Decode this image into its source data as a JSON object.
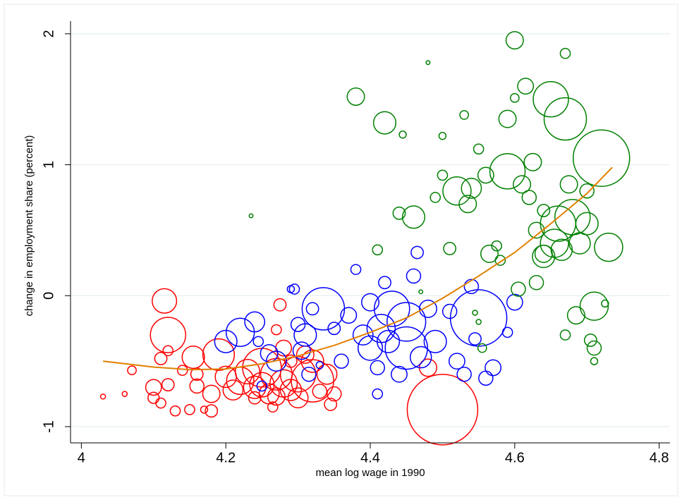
{
  "chart_data": {
    "type": "scatter",
    "x_label": "mean log wage in 1990",
    "y_label": "change in employment share (percent)",
    "xlim": [
      3.985,
      4.815
    ],
    "ylim": [
      -1.124,
      2.204
    ],
    "xticks": [
      4,
      4.2,
      4.4,
      4.6,
      4.8
    ],
    "yticks": [
      -1,
      0,
      1,
      2
    ],
    "grid": true,
    "series": [
      {
        "color": "#ff0000",
        "x": [
          4.03,
          4.06,
          4.07,
          4.1,
          4.1,
          4.11,
          4.11,
          4.115,
          4.12,
          4.12,
          4.12,
          4.13,
          4.14,
          4.15,
          4.155,
          4.16,
          4.16,
          4.17,
          4.18,
          4.18,
          4.19,
          4.2,
          4.21,
          4.22,
          4.23,
          4.24,
          4.25,
          4.25,
          4.26,
          4.265,
          4.27,
          4.27,
          4.28,
          4.29,
          4.3,
          4.3,
          4.31,
          4.32,
          4.33,
          4.34,
          4.345,
          4.35,
          4.32,
          4.28,
          4.275,
          4.27,
          4.24,
          4.5,
          4.48,
          4.29
        ],
        "values": [
          -0.77,
          -0.75,
          -0.57,
          -0.7,
          -0.78,
          -0.48,
          -0.82,
          -0.04,
          -0.3,
          -0.68,
          -0.42,
          -0.88,
          -0.57,
          -0.87,
          -0.47,
          -0.69,
          -0.6,
          -0.87,
          -0.88,
          -0.75,
          -0.45,
          -0.62,
          -0.72,
          -0.65,
          -0.58,
          -0.7,
          -0.55,
          -0.68,
          -0.75,
          -0.85,
          -0.6,
          -0.77,
          -0.67,
          -0.72,
          -0.6,
          -0.78,
          -0.45,
          -0.65,
          -0.73,
          -0.6,
          -0.83,
          -0.75,
          -0.5,
          -0.4,
          -0.07,
          -0.26,
          -0.78,
          -0.87,
          -0.55,
          -0.5
        ],
        "sizes": [
          0.5,
          0.5,
          1.5,
          5,
          2.5,
          3,
          2,
          12,
          25,
          3,
          2,
          2,
          2,
          2,
          10,
          4,
          3,
          1,
          3,
          6,
          20,
          9,
          8,
          15,
          12,
          10,
          30,
          12,
          8,
          2,
          20,
          6,
          15,
          9,
          25,
          8,
          6,
          36,
          4,
          8,
          3,
          4,
          10,
          5,
          3,
          2,
          3,
          100,
          6,
          3
        ]
      },
      {
        "color": "#0000ff",
        "x": [
          4.2,
          4.22,
          4.24,
          4.245,
          4.25,
          4.26,
          4.27,
          4.29,
          4.295,
          4.3,
          4.305,
          4.31,
          4.315,
          4.32,
          4.33,
          4.335,
          4.35,
          4.36,
          4.37,
          4.38,
          4.39,
          4.4,
          4.4,
          4.41,
          4.41,
          4.415,
          4.42,
          4.425,
          4.43,
          4.44,
          4.45,
          4.45,
          4.46,
          4.465,
          4.47,
          4.48,
          4.49,
          4.51,
          4.52,
          4.53,
          4.54,
          4.545,
          4.55,
          4.56,
          4.57,
          4.59,
          4.6
        ],
        "values": [
          -0.35,
          -0.28,
          -0.2,
          -0.35,
          -0.69,
          -0.44,
          -0.5,
          0.05,
          0.05,
          -0.22,
          -0.42,
          -0.3,
          -0.6,
          -0.1,
          -0.53,
          -0.1,
          -0.25,
          -0.5,
          -0.15,
          0.2,
          -0.3,
          -0.05,
          -0.4,
          -0.55,
          -0.75,
          -0.25,
          0.1,
          -0.35,
          -0.1,
          -0.6,
          -0.2,
          -0.4,
          0.15,
          0.33,
          -0.47,
          -0.1,
          -0.35,
          -0.12,
          -0.5,
          -0.6,
          0.07,
          -0.33,
          -0.17,
          -0.63,
          -0.55,
          -0.28,
          -0.05
        ],
        "sizes": [
          10,
          16,
          8,
          2,
          2,
          6,
          8,
          1,
          2,
          4,
          6,
          10,
          4,
          3,
          1,
          36,
          3,
          4,
          5,
          2,
          8,
          6,
          12,
          4,
          2,
          16,
          3,
          10,
          25,
          5,
          30,
          36,
          4,
          3,
          9,
          6,
          10,
          4,
          5,
          4,
          4,
          3,
          64,
          4,
          5,
          2,
          5
        ]
      },
      {
        "color": "#008000",
        "x": [
          4.235,
          4.38,
          4.41,
          4.42,
          4.44,
          4.445,
          4.46,
          4.47,
          4.48,
          4.49,
          4.5,
          4.5,
          4.51,
          4.52,
          4.53,
          4.535,
          4.54,
          4.545,
          4.55,
          4.55,
          4.555,
          4.56,
          4.565,
          4.575,
          4.58,
          4.59,
          4.59,
          4.6,
          4.6,
          4.605,
          4.61,
          4.615,
          4.62,
          4.625,
          4.63,
          4.64,
          4.64,
          4.65,
          4.655,
          4.66,
          4.665,
          4.67,
          4.67,
          4.675,
          4.68,
          4.685,
          4.69,
          4.7,
          4.7,
          4.705,
          4.71,
          4.71,
          4.71,
          4.72,
          4.73,
          4.725,
          4.67,
          4.63,
          4.64
        ],
        "values": [
          0.61,
          1.52,
          0.35,
          1.32,
          0.63,
          1.23,
          0.6,
          0.03,
          1.78,
          0.75,
          0.92,
          1.22,
          0.36,
          0.8,
          1.38,
          0.7,
          0.82,
          -0.13,
          1.12,
          -0.2,
          -0.4,
          0.92,
          0.32,
          0.38,
          0.27,
          1.35,
          0.95,
          1.95,
          1.51,
          0.05,
          0.85,
          1.6,
          0.75,
          1.02,
          0.5,
          0.65,
          0.3,
          1.5,
          0.4,
          0.55,
          0.35,
          1.85,
          1.35,
          0.85,
          0.6,
          -0.15,
          0.4,
          0.8,
          0.55,
          -0.34,
          -0.08,
          -0.4,
          -0.5,
          1.05,
          0.37,
          -0.06,
          -0.3,
          0.1,
          0.32
        ],
        "sizes": [
          0.3,
          6,
          2,
          10,
          3,
          1,
          10,
          0.3,
          0.3,
          2,
          2,
          1,
          3,
          16,
          1.5,
          6,
          8,
          0.5,
          2,
          0.5,
          1.5,
          5,
          6,
          2,
          2,
          6,
          25,
          6,
          1.5,
          4,
          6,
          5,
          4,
          6,
          5,
          3,
          10,
          25,
          16,
          25,
          9,
          2,
          36,
          6,
          25,
          6,
          9,
          4,
          10,
          3,
          16,
          4,
          1,
          64,
          16,
          1,
          2,
          4,
          6
        ]
      }
    ],
    "fit_line": {
      "color": "#e08000",
      "x": [
        4.03,
        4.1,
        4.15,
        4.2,
        4.25,
        4.3,
        4.35,
        4.4,
        4.45,
        4.5,
        4.55,
        4.6,
        4.65,
        4.7,
        4.735
      ],
      "values": [
        -0.5,
        -0.545,
        -0.565,
        -0.56,
        -0.52,
        -0.46,
        -0.38,
        -0.28,
        -0.17,
        -0.02,
        0.15,
        0.33,
        0.55,
        0.78,
        0.98
      ]
    }
  }
}
